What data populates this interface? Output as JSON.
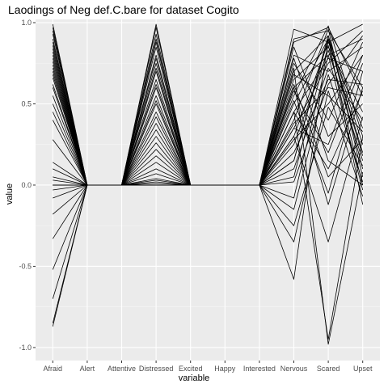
{
  "chart_data": {
    "type": "line",
    "title": "Laodings of Neg def.C.bare for dataset Cogito",
    "xlabel": "variable",
    "ylabel": "value",
    "categories": [
      "Afraid",
      "Alert",
      "Attentive",
      "Distressed",
      "Excited",
      "Happy",
      "Interested",
      "Nervous",
      "Scared",
      "Upset"
    ],
    "ylim": [
      -1.08,
      1.02
    ],
    "yticks": [
      -1.0,
      -0.5,
      0.0,
      0.5,
      1.0
    ],
    "ytick_labels": [
      "-1.0",
      "-0.5",
      "0.0",
      "0.5",
      "1.0"
    ],
    "grid": true,
    "line_color": "#000000",
    "panel_color": "#ebebeb",
    "series_note": "Each line is one loading profile across the ten variables; Alert, Attentive, Excited, Happy and Interested are ~0.",
    "series": [
      {
        "values": [
          0.99,
          0.0,
          0.0,
          0.99,
          0.0,
          0.0,
          0.0,
          0.96,
          0.88,
          0.99
        ]
      },
      {
        "values": [
          0.97,
          0.0,
          0.0,
          0.97,
          0.0,
          0.0,
          0.0,
          0.9,
          0.95,
          0.6
        ]
      },
      {
        "values": [
          0.95,
          0.0,
          0.0,
          0.93,
          0.0,
          0.0,
          0.0,
          0.55,
          0.98,
          0.3
        ]
      },
      {
        "values": [
          0.93,
          0.0,
          0.0,
          0.9,
          0.0,
          0.0,
          0.0,
          0.8,
          0.7,
          0.85
        ]
      },
      {
        "values": [
          0.9,
          0.0,
          0.0,
          0.88,
          0.0,
          0.0,
          0.0,
          0.7,
          0.92,
          0.1
        ]
      },
      {
        "values": [
          0.88,
          0.0,
          0.0,
          0.85,
          0.0,
          0.0,
          0.0,
          0.65,
          0.85,
          0.45
        ]
      },
      {
        "values": [
          0.86,
          0.0,
          0.0,
          0.8,
          0.0,
          0.0,
          0.0,
          0.6,
          0.8,
          0.9
        ]
      },
      {
        "values": [
          0.84,
          0.0,
          0.0,
          0.78,
          0.0,
          0.0,
          0.0,
          0.5,
          0.9,
          0.2
        ]
      },
      {
        "values": [
          0.82,
          0.0,
          0.0,
          0.75,
          0.0,
          0.0,
          0.0,
          0.45,
          0.78,
          0.7
        ]
      },
      {
        "values": [
          0.8,
          0.0,
          0.0,
          0.72,
          0.0,
          0.0,
          0.0,
          0.4,
          0.96,
          0.05
        ]
      },
      {
        "values": [
          0.78,
          0.0,
          0.0,
          0.7,
          0.0,
          0.0,
          0.0,
          0.38,
          0.6,
          0.55
        ]
      },
      {
        "values": [
          0.76,
          0.0,
          0.0,
          0.65,
          0.0,
          0.0,
          0.0,
          0.35,
          0.75,
          0.95
        ]
      },
      {
        "values": [
          0.74,
          0.0,
          0.0,
          0.62,
          0.0,
          0.0,
          0.0,
          0.3,
          0.88,
          0.35
        ]
      },
      {
        "values": [
          0.72,
          0.0,
          0.0,
          0.6,
          0.0,
          0.0,
          0.0,
          0.28,
          0.5,
          0.8
        ]
      },
      {
        "values": [
          0.7,
          0.0,
          0.0,
          0.55,
          0.0,
          0.0,
          0.0,
          0.25,
          0.83,
          0.15
        ]
      },
      {
        "values": [
          0.68,
          0.0,
          0.0,
          0.52,
          0.0,
          0.0,
          0.0,
          0.2,
          0.65,
          0.62
        ]
      },
      {
        "values": [
          0.66,
          0.0,
          0.0,
          0.5,
          0.0,
          0.0,
          0.0,
          0.75,
          0.4,
          0.88
        ]
      },
      {
        "values": [
          0.62,
          0.0,
          0.0,
          0.45,
          0.0,
          0.0,
          0.0,
          0.85,
          0.3,
          0.5
        ]
      },
      {
        "values": [
          0.6,
          0.0,
          0.0,
          0.42,
          0.0,
          0.0,
          0.0,
          0.15,
          0.92,
          0.25
        ]
      },
      {
        "values": [
          0.55,
          0.0,
          0.0,
          0.38,
          0.0,
          0.0,
          0.0,
          0.1,
          0.72,
          0.4
        ]
      },
      {
        "values": [
          0.5,
          0.0,
          0.0,
          0.34,
          0.0,
          0.0,
          0.0,
          0.58,
          0.2,
          0.75
        ]
      },
      {
        "values": [
          0.45,
          0.0,
          0.0,
          0.3,
          0.0,
          0.0,
          0.0,
          0.05,
          0.86,
          0.0
        ]
      },
      {
        "values": [
          0.4,
          0.0,
          0.0,
          0.26,
          0.0,
          0.0,
          0.0,
          0.68,
          0.55,
          0.33
        ]
      },
      {
        "values": [
          0.28,
          0.0,
          0.0,
          0.22,
          0.0,
          0.0,
          0.0,
          0.02,
          0.62,
          0.92
        ]
      },
      {
        "values": [
          0.14,
          0.0,
          0.0,
          0.18,
          0.0,
          0.0,
          0.0,
          0.45,
          0.1,
          0.58
        ]
      },
      {
        "values": [
          0.1,
          0.0,
          0.0,
          0.14,
          0.0,
          0.0,
          0.0,
          -0.08,
          0.8,
          -0.03
        ]
      },
      {
        "values": [
          0.05,
          0.0,
          0.0,
          0.1,
          0.0,
          0.0,
          0.0,
          0.52,
          -0.05,
          0.7
        ]
      },
      {
        "values": [
          0.03,
          0.0,
          0.0,
          0.07,
          0.0,
          0.0,
          0.0,
          -0.25,
          0.48,
          0.12
        ]
      },
      {
        "values": [
          0.0,
          0.0,
          0.0,
          0.04,
          0.0,
          0.0,
          0.0,
          0.62,
          0.05,
          0.28
        ]
      },
      {
        "values": [
          -0.03,
          0.0,
          0.0,
          0.02,
          0.0,
          0.0,
          0.0,
          -0.35,
          0.58,
          -0.07
        ]
      },
      {
        "values": [
          -0.08,
          0.0,
          0.0,
          0.01,
          0.0,
          0.0,
          0.0,
          0.3,
          -0.35,
          0.42
        ]
      },
      {
        "values": [
          -0.18,
          0.0,
          0.0,
          0.0,
          0.0,
          0.0,
          0.0,
          -0.58,
          0.9,
          0.18
        ]
      },
      {
        "values": [
          -0.33,
          0.0,
          0.0,
          0.0,
          0.0,
          0.0,
          0.0,
          0.72,
          -0.98,
          0.08
        ]
      },
      {
        "values": [
          -0.52,
          0.0,
          0.0,
          0.0,
          0.0,
          0.0,
          0.0,
          -0.15,
          0.68,
          0.02
        ]
      },
      {
        "values": [
          -0.7,
          0.0,
          0.0,
          0.0,
          0.0,
          0.0,
          0.0,
          0.45,
          -0.95,
          0.3
        ]
      },
      {
        "values": [
          -0.85,
          0.0,
          0.0,
          0.0,
          0.0,
          0.0,
          0.0,
          0.15,
          0.9,
          -0.12
        ]
      },
      {
        "values": [
          -0.87,
          0.0,
          0.0,
          0.0,
          0.0,
          0.0,
          0.0,
          0.6,
          -0.12,
          0.6
        ]
      },
      {
        "values": [
          0.0,
          0.0,
          0.0,
          0.03,
          0.0,
          0.0,
          0.0,
          0.88,
          0.97,
          0.55
        ]
      },
      {
        "values": [
          0.0,
          0.0,
          0.0,
          0.0,
          0.0,
          0.0,
          0.0,
          0.35,
          0.25,
          0.8
        ]
      },
      {
        "values": [
          0.0,
          0.0,
          0.0,
          0.0,
          0.0,
          0.0,
          0.0,
          0.78,
          0.15,
          0.0
        ]
      }
    ]
  }
}
